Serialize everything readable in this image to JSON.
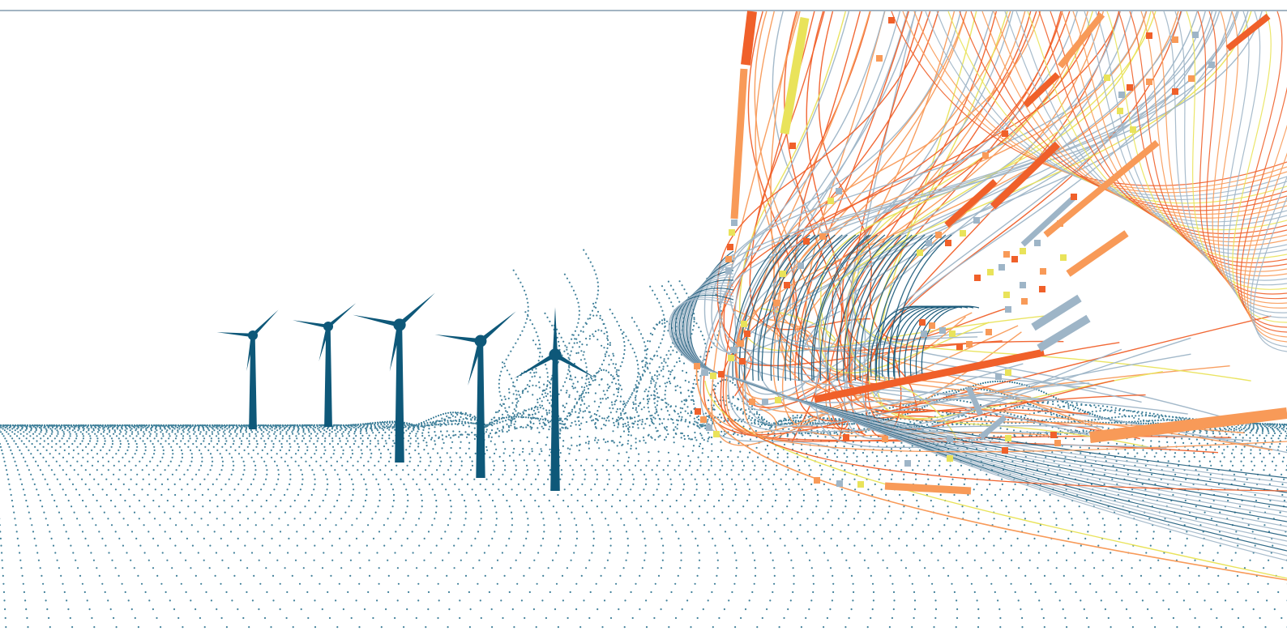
{
  "scene": {
    "palette": {
      "turbine": "#0e5879",
      "dots": "#1e6a88",
      "red_orange": "#f0602a",
      "orange": "#f89a58",
      "yellow": "#e9e35a",
      "gray_blue": "#9eb5c7",
      "dark_teal": "#1b5a7a",
      "top_rule": "#a3b4c2"
    },
    "objects": [
      {
        "name": "dotted-terrain-grid"
      },
      {
        "name": "wind-turbine",
        "count": 5
      },
      {
        "name": "wind-streamlines"
      },
      {
        "name": "particle-markers"
      }
    ]
  }
}
